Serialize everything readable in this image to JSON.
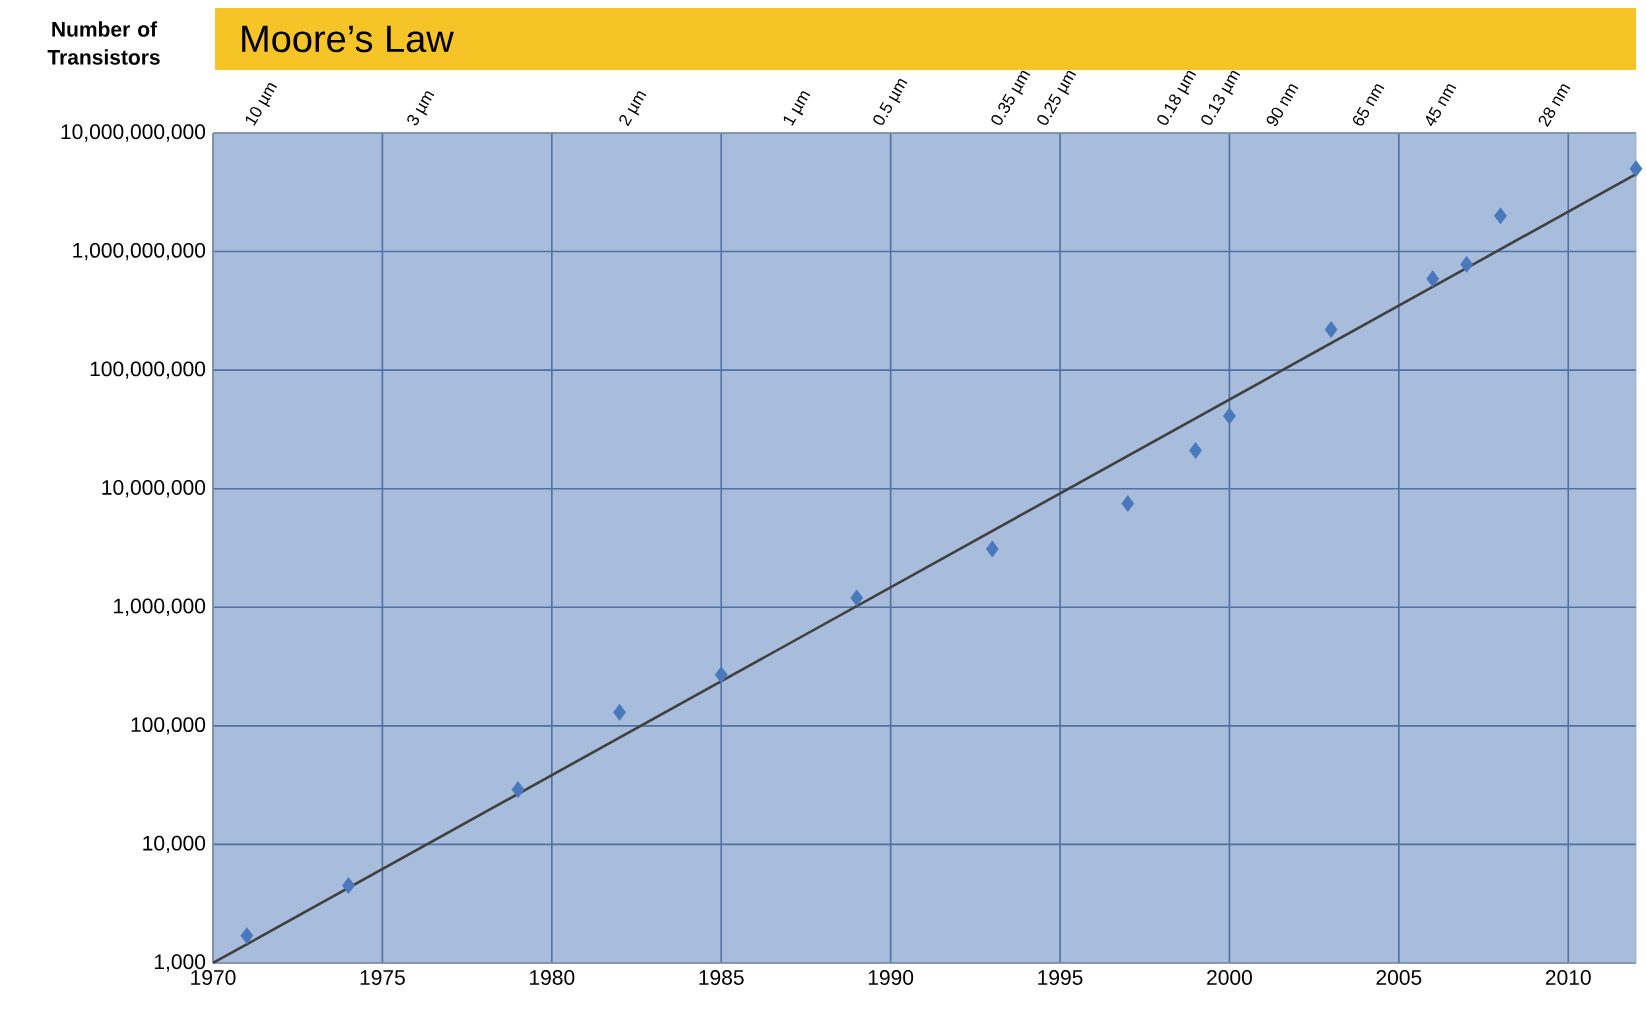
{
  "chart_data": {
    "type": "scatter",
    "title": "Moore’s Law",
    "ylabel": "Number of Transistors",
    "log": "y",
    "grid": true,
    "marker": "diamond",
    "xlim": [
      1970,
      2012
    ],
    "xticks": [
      1970,
      1975,
      1980,
      1985,
      1990,
      1995,
      2000,
      2005,
      2010
    ],
    "ylim": [
      1000,
      10000000000
    ],
    "yticks": [
      {
        "value": 1000,
        "label": "1,000"
      },
      {
        "value": 10000,
        "label": "10,000"
      },
      {
        "value": 100000,
        "label": "100,000"
      },
      {
        "value": 1000000,
        "label": "1,000,000"
      },
      {
        "value": 10000000,
        "label": "10,000,000"
      },
      {
        "value": 100000000,
        "label": "100,000,000"
      },
      {
        "value": 1000000000,
        "label": "1,000,000,000"
      },
      {
        "value": 10000000000,
        "label": "10,000,000,000"
      }
    ],
    "annotations": [
      "10 µm",
      "3 µm",
      "2 µm",
      "1 µm",
      "0.5 µm",
      "0.35 µm",
      "0.25 µm",
      "0.18 µm",
      "0.13 µm",
      "90 nm",
      "65 nm",
      "45 nm",
      "28 nm"
    ],
    "series": [
      {
        "color": "#4a78bd",
        "x": [
          1971,
          1974,
          1979,
          1982,
          1985,
          1989,
          1993,
          1997,
          1999,
          2000,
          2003,
          2006,
          2007,
          2008,
          2012
        ],
        "values": [
          1700,
          4500,
          29000,
          130000,
          270000,
          1200000,
          3100000,
          7500000,
          21000000,
          41000000,
          220000000,
          590000000,
          780000000,
          2000000000,
          5000000000
        ]
      },
      {
        "type": "line",
        "marker": "none",
        "color": "#404040",
        "x": [
          1970,
          2012
        ],
        "values": [
          1000,
          4500000000
        ]
      }
    ]
  }
}
